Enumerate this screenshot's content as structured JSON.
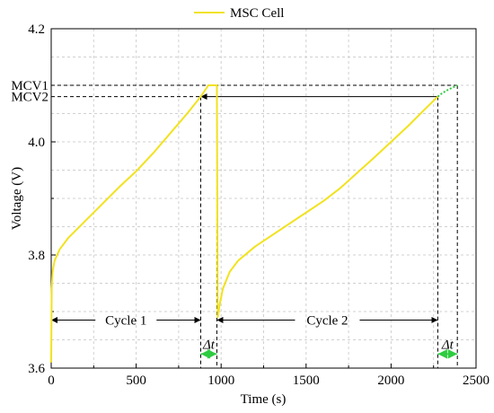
{
  "chart_data": {
    "type": "line",
    "title": "",
    "xlabel": "Time (s)",
    "ylabel": "Voltage (V)",
    "xlim": [
      0,
      2500
    ],
    "ylim": [
      3.6,
      4.2
    ],
    "xticks": [
      "0",
      "500",
      "1000",
      "1500",
      "2000",
      "2500"
    ],
    "yticks": [
      "3.6",
      "3.8",
      "4.0",
      "4.2"
    ],
    "xtick_values": [
      0,
      500,
      1000,
      1500,
      2000,
      2500
    ],
    "ytick_values": [
      3.6,
      3.8,
      4.0,
      4.2
    ],
    "grid": true,
    "legend": {
      "placement": "top-center",
      "entries": [
        "MSC Cell"
      ]
    },
    "series": [
      {
        "name": "MSC Cell",
        "color": "#f2e21f",
        "x": [
          0,
          3,
          8,
          20,
          50,
          100,
          200,
          300,
          400,
          500,
          600,
          700,
          800,
          880,
          925,
          925,
          975,
          975,
          980,
          990,
          1010,
          1050,
          1100,
          1200,
          1300,
          1400,
          1500,
          1600,
          1700,
          1800,
          1900,
          2000,
          2100,
          2200,
          2275
        ],
        "y": [
          3.61,
          3.74,
          3.77,
          3.79,
          3.81,
          3.83,
          3.86,
          3.89,
          3.92,
          3.948,
          3.98,
          4.015,
          4.05,
          4.08,
          4.1,
          4.1,
          4.1,
          4.1,
          3.69,
          3.71,
          3.74,
          3.77,
          3.79,
          3.815,
          3.835,
          3.855,
          3.875,
          3.895,
          3.918,
          3.945,
          3.972,
          4.0,
          4.028,
          4.058,
          4.08
        ]
      },
      {
        "name": "",
        "color": "#2ecc40",
        "style": "dotted",
        "x": [
          2275,
          2300,
          2340,
          2370,
          2390
        ],
        "y": [
          4.08,
          4.086,
          4.093,
          4.097,
          4.1
        ]
      }
    ],
    "annotations": {
      "mcv1": {
        "label": "MCV1",
        "y": 4.1,
        "x_end": 2390
      },
      "mcv2": {
        "label": "MCV2",
        "y": 4.08,
        "x_end": 2275
      },
      "mcv2_arrow": {
        "from_x": 2275,
        "to_x": 880,
        "y": 4.08
      },
      "vertical_markers_x": [
        880,
        975,
        2275,
        2390
      ],
      "cycle1": {
        "label": "Cycle 1",
        "from_x": 0,
        "to_x": 880,
        "y": 3.685
      },
      "cycle2": {
        "label": "Cycle 2",
        "from_x": 975,
        "to_x": 2275,
        "y": 3.685
      },
      "delta1": {
        "label": "Δt",
        "from_x": 880,
        "to_x": 975,
        "y": 3.625
      },
      "delta2": {
        "label": "Δt",
        "from_x": 2275,
        "to_x": 2390,
        "y": 3.625
      }
    }
  }
}
